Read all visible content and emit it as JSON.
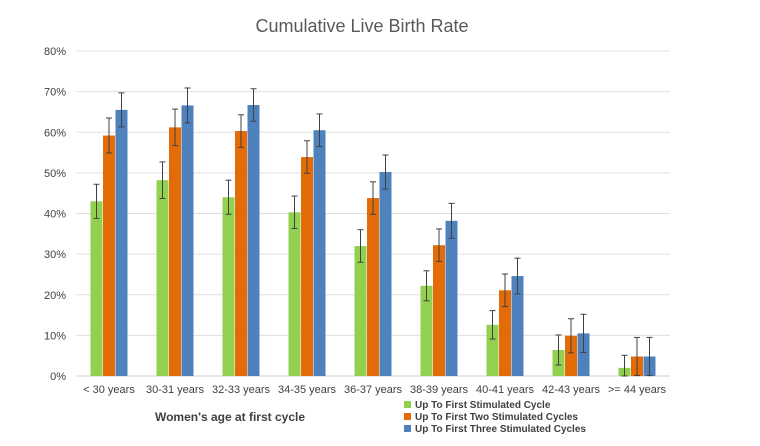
{
  "chart_data": {
    "type": "bar",
    "title": "Cumulative Live Birth Rate",
    "xlabel": "Women's age at first cycle",
    "ylabel": "",
    "ylim": [
      0,
      80
    ],
    "ytick_step": 10,
    "ytick_format": "percent",
    "categories": [
      "< 30 years",
      "30-31 years",
      "32-33 years",
      "34-35 years",
      "36-37 years",
      "38-39 years",
      "40-41 years",
      "42-43 years",
      ">= 44 years"
    ],
    "series": [
      {
        "name": "Up To First Stimulated Cycle",
        "color": "#92d050",
        "values": [
          43,
          48.2,
          44,
          40.3,
          32,
          22.2,
          12.6,
          6.4,
          2
        ],
        "error": [
          4.2,
          4.5,
          4.2,
          4.0,
          4.0,
          3.7,
          3.5,
          3.7,
          3.1
        ]
      },
      {
        "name": "Up To First Two Stimulated Cycles",
        "color": "#e36c09",
        "values": [
          59.2,
          61.2,
          60.3,
          53.9,
          43.8,
          32.2,
          21.1,
          9.9,
          4.8
        ],
        "error": [
          4.3,
          4.5,
          4.0,
          4.0,
          4.0,
          4.0,
          4.0,
          4.2,
          4.7
        ]
      },
      {
        "name": "Up To First Three Stimulated Cycles",
        "color": "#4f81bd",
        "values": [
          65.5,
          66.6,
          66.7,
          60.5,
          50.2,
          38.2,
          24.6,
          10.5,
          4.8
        ],
        "error": [
          4.2,
          4.3,
          4.0,
          4.0,
          4.2,
          4.3,
          4.4,
          4.7,
          4.7
        ]
      }
    ],
    "legend_position": "bottom-right",
    "grid": true
  }
}
